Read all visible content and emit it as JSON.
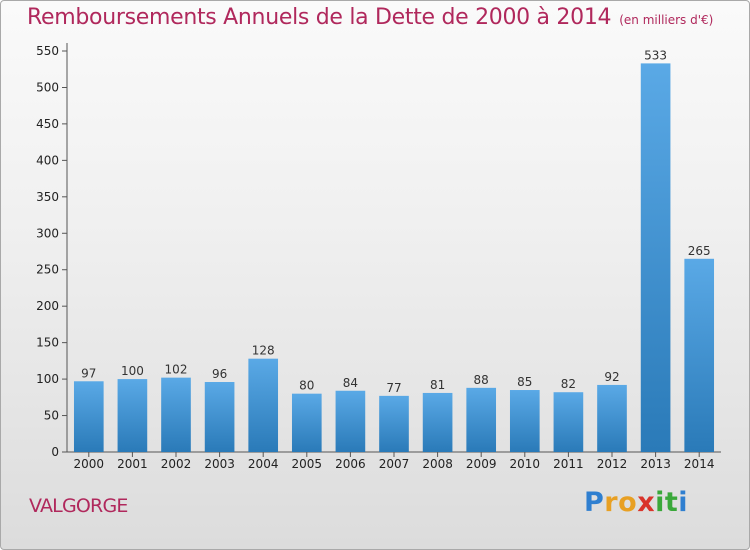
{
  "chart_data": {
    "type": "bar",
    "title": "Remboursements Annuels de la Dette de 2000 à 2014",
    "subtitle": "(en milliers d'€)",
    "categories": [
      "2000",
      "2001",
      "2002",
      "2003",
      "2004",
      "2005",
      "2006",
      "2007",
      "2008",
      "2009",
      "2010",
      "2011",
      "2012",
      "2013",
      "2014"
    ],
    "values": [
      97,
      100,
      102,
      96,
      128,
      80,
      84,
      77,
      81,
      88,
      85,
      82,
      92,
      533,
      265
    ],
    "ylim": [
      0,
      550
    ],
    "yticks": [
      0,
      50,
      100,
      150,
      200,
      250,
      300,
      350,
      400,
      450,
      500,
      550
    ],
    "grid": false,
    "bar_color": "#5aa9e6",
    "bar_color_dark": "#2a7ab8"
  },
  "footer": {
    "town": "VALGORGE",
    "logo_letters": [
      "P",
      "r",
      "o",
      "x",
      "i",
      "t",
      "i"
    ],
    "logo_colors": [
      "#2f7fd0",
      "#e8a023",
      "#e8a023",
      "#d9342b",
      "#3aa83a",
      "#3aa83a",
      "#2f7fd0"
    ]
  }
}
